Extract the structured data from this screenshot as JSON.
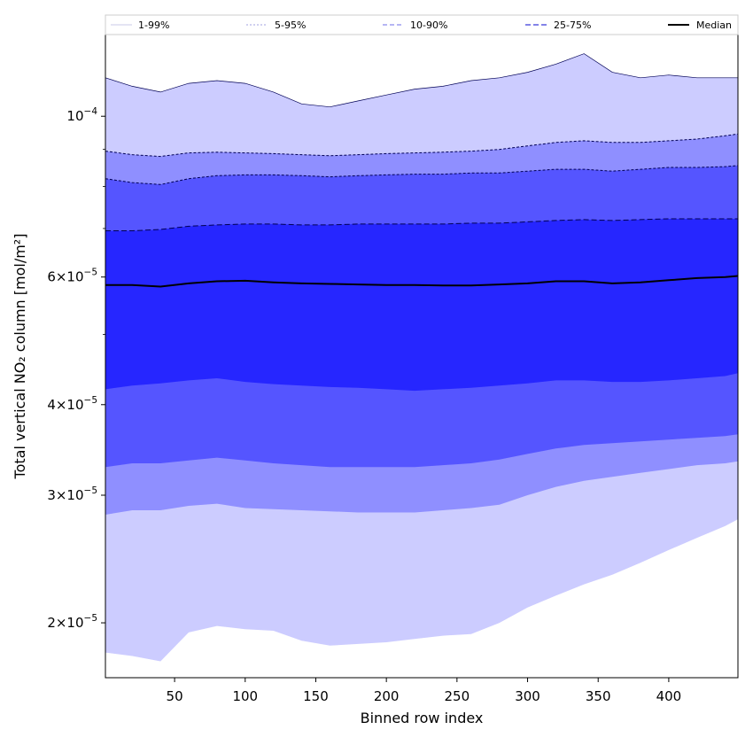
{
  "chart_data": {
    "type": "area",
    "xlabel": "Binned row index",
    "ylabel": "Total vertical NO₂ column [mol/m²]",
    "xlim": [
      1,
      449
    ],
    "ylim": [
      1.68e-05,
      0.00013
    ],
    "yscale": "log",
    "grid": false,
    "legend_position": "top",
    "x_ticks": [
      50,
      100,
      150,
      200,
      250,
      300,
      350,
      400
    ],
    "y_ticks": [
      {
        "value": 2e-05,
        "mant": "2",
        "exp": "−5"
      },
      {
        "value": 3e-05,
        "mant": "3",
        "exp": "−5"
      },
      {
        "value": 4e-05,
        "mant": "4",
        "exp": "−5"
      },
      {
        "value": 6e-05,
        "mant": "6",
        "exp": "−5"
      },
      {
        "value": 0.0001,
        "mant": "",
        "exp": "−4"
      }
    ],
    "x": [
      1,
      20,
      40,
      60,
      80,
      100,
      120,
      140,
      160,
      180,
      200,
      220,
      240,
      260,
      280,
      300,
      320,
      340,
      360,
      380,
      400,
      420,
      440,
      449
    ],
    "series": [
      {
        "name": "1-99%",
        "lower": [
          1.82e-05,
          1.8e-05,
          1.77e-05,
          1.94e-05,
          1.98e-05,
          1.96e-05,
          1.95e-05,
          1.89e-05,
          1.86e-05,
          1.87e-05,
          1.88e-05,
          1.9e-05,
          1.92e-05,
          1.93e-05,
          2e-05,
          2.1e-05,
          2.18e-05,
          2.26e-05,
          2.33e-05,
          2.42e-05,
          2.52e-05,
          2.62e-05,
          2.72e-05,
          2.78e-05
        ],
        "upper": [
          0.000113,
          0.00011,
          0.000108,
          0.000111,
          0.000112,
          0.000111,
          0.000108,
          0.000104,
          0.000103,
          0.000105,
          0.000107,
          0.000109,
          0.00011,
          0.000112,
          0.000113,
          0.000115,
          0.000118,
          0.000122,
          0.000115,
          0.000113,
          0.000114,
          0.000113,
          0.000113,
          0.000113
        ]
      },
      {
        "name": "5-95%",
        "lower": [
          2.82e-05,
          2.86e-05,
          2.86e-05,
          2.9e-05,
          2.92e-05,
          2.88e-05,
          2.87e-05,
          2.86e-05,
          2.85e-05,
          2.84e-05,
          2.84e-05,
          2.84e-05,
          2.86e-05,
          2.88e-05,
          2.91e-05,
          3e-05,
          3.08e-05,
          3.14e-05,
          3.18e-05,
          3.22e-05,
          3.26e-05,
          3.3e-05,
          3.32e-05,
          3.34e-05
        ],
        "upper": [
          8.95e-05,
          8.85e-05,
          8.8e-05,
          8.9e-05,
          8.92e-05,
          8.9e-05,
          8.88e-05,
          8.85e-05,
          8.82e-05,
          8.85e-05,
          8.88e-05,
          8.9e-05,
          8.92e-05,
          8.95e-05,
          9e-05,
          9.1e-05,
          9.2e-05,
          9.25e-05,
          9.2e-05,
          9.2e-05,
          9.25e-05,
          9.3e-05,
          9.4e-05,
          9.45e-05
        ]
      },
      {
        "name": "10-90%",
        "lower": [
          3.28e-05,
          3.32e-05,
          3.32e-05,
          3.35e-05,
          3.38e-05,
          3.35e-05,
          3.32e-05,
          3.3e-05,
          3.28e-05,
          3.28e-05,
          3.28e-05,
          3.28e-05,
          3.3e-05,
          3.32e-05,
          3.36e-05,
          3.42e-05,
          3.48e-05,
          3.52e-05,
          3.54e-05,
          3.56e-05,
          3.58e-05,
          3.6e-05,
          3.62e-05,
          3.64e-05
        ],
        "upper": [
          8.2e-05,
          8.1e-05,
          8.05e-05,
          8.2e-05,
          8.28e-05,
          8.3e-05,
          8.3e-05,
          8.28e-05,
          8.25e-05,
          8.28e-05,
          8.3e-05,
          8.32e-05,
          8.32e-05,
          8.35e-05,
          8.35e-05,
          8.4e-05,
          8.45e-05,
          8.45e-05,
          8.4e-05,
          8.45e-05,
          8.5e-05,
          8.5e-05,
          8.52e-05,
          8.55e-05
        ]
      },
      {
        "name": "25-75%",
        "lower": [
          4.2e-05,
          4.25e-05,
          4.28e-05,
          4.32e-05,
          4.35e-05,
          4.3e-05,
          4.27e-05,
          4.25e-05,
          4.23e-05,
          4.22e-05,
          4.2e-05,
          4.18e-05,
          4.2e-05,
          4.22e-05,
          4.25e-05,
          4.28e-05,
          4.32e-05,
          4.32e-05,
          4.3e-05,
          4.3e-05,
          4.32e-05,
          4.35e-05,
          4.38e-05,
          4.42e-05
        ],
        "upper": [
          6.95e-05,
          6.95e-05,
          6.98e-05,
          7.05e-05,
          7.08e-05,
          7.1e-05,
          7.1e-05,
          7.08e-05,
          7.08e-05,
          7.1e-05,
          7.1e-05,
          7.1e-05,
          7.1e-05,
          7.12e-05,
          7.12e-05,
          7.15e-05,
          7.18e-05,
          7.2e-05,
          7.18e-05,
          7.2e-05,
          7.22e-05,
          7.22e-05,
          7.22e-05,
          7.22e-05
        ]
      },
      {
        "name": "Median",
        "values": [
          5.85e-05,
          5.85e-05,
          5.82e-05,
          5.88e-05,
          5.92e-05,
          5.93e-05,
          5.9e-05,
          5.88e-05,
          5.87e-05,
          5.86e-05,
          5.85e-05,
          5.85e-05,
          5.84e-05,
          5.84e-05,
          5.86e-05,
          5.88e-05,
          5.92e-05,
          5.92e-05,
          5.88e-05,
          5.9e-05,
          5.94e-05,
          5.98e-05,
          6e-05,
          6.02e-05
        ]
      }
    ],
    "colors": {
      "band_1_99": "#ccccff",
      "band_5_95": "#8f8fff",
      "band_10_90": "#5555ff",
      "band_25_75": "#2626ff",
      "line_1_99": "#c8c8e8",
      "line_5_95": "#a0a0e0",
      "line_10_90": "#8a8aee",
      "line_25_75": "#5a5ae0",
      "median": "#000000",
      "edge": "#000055"
    }
  }
}
